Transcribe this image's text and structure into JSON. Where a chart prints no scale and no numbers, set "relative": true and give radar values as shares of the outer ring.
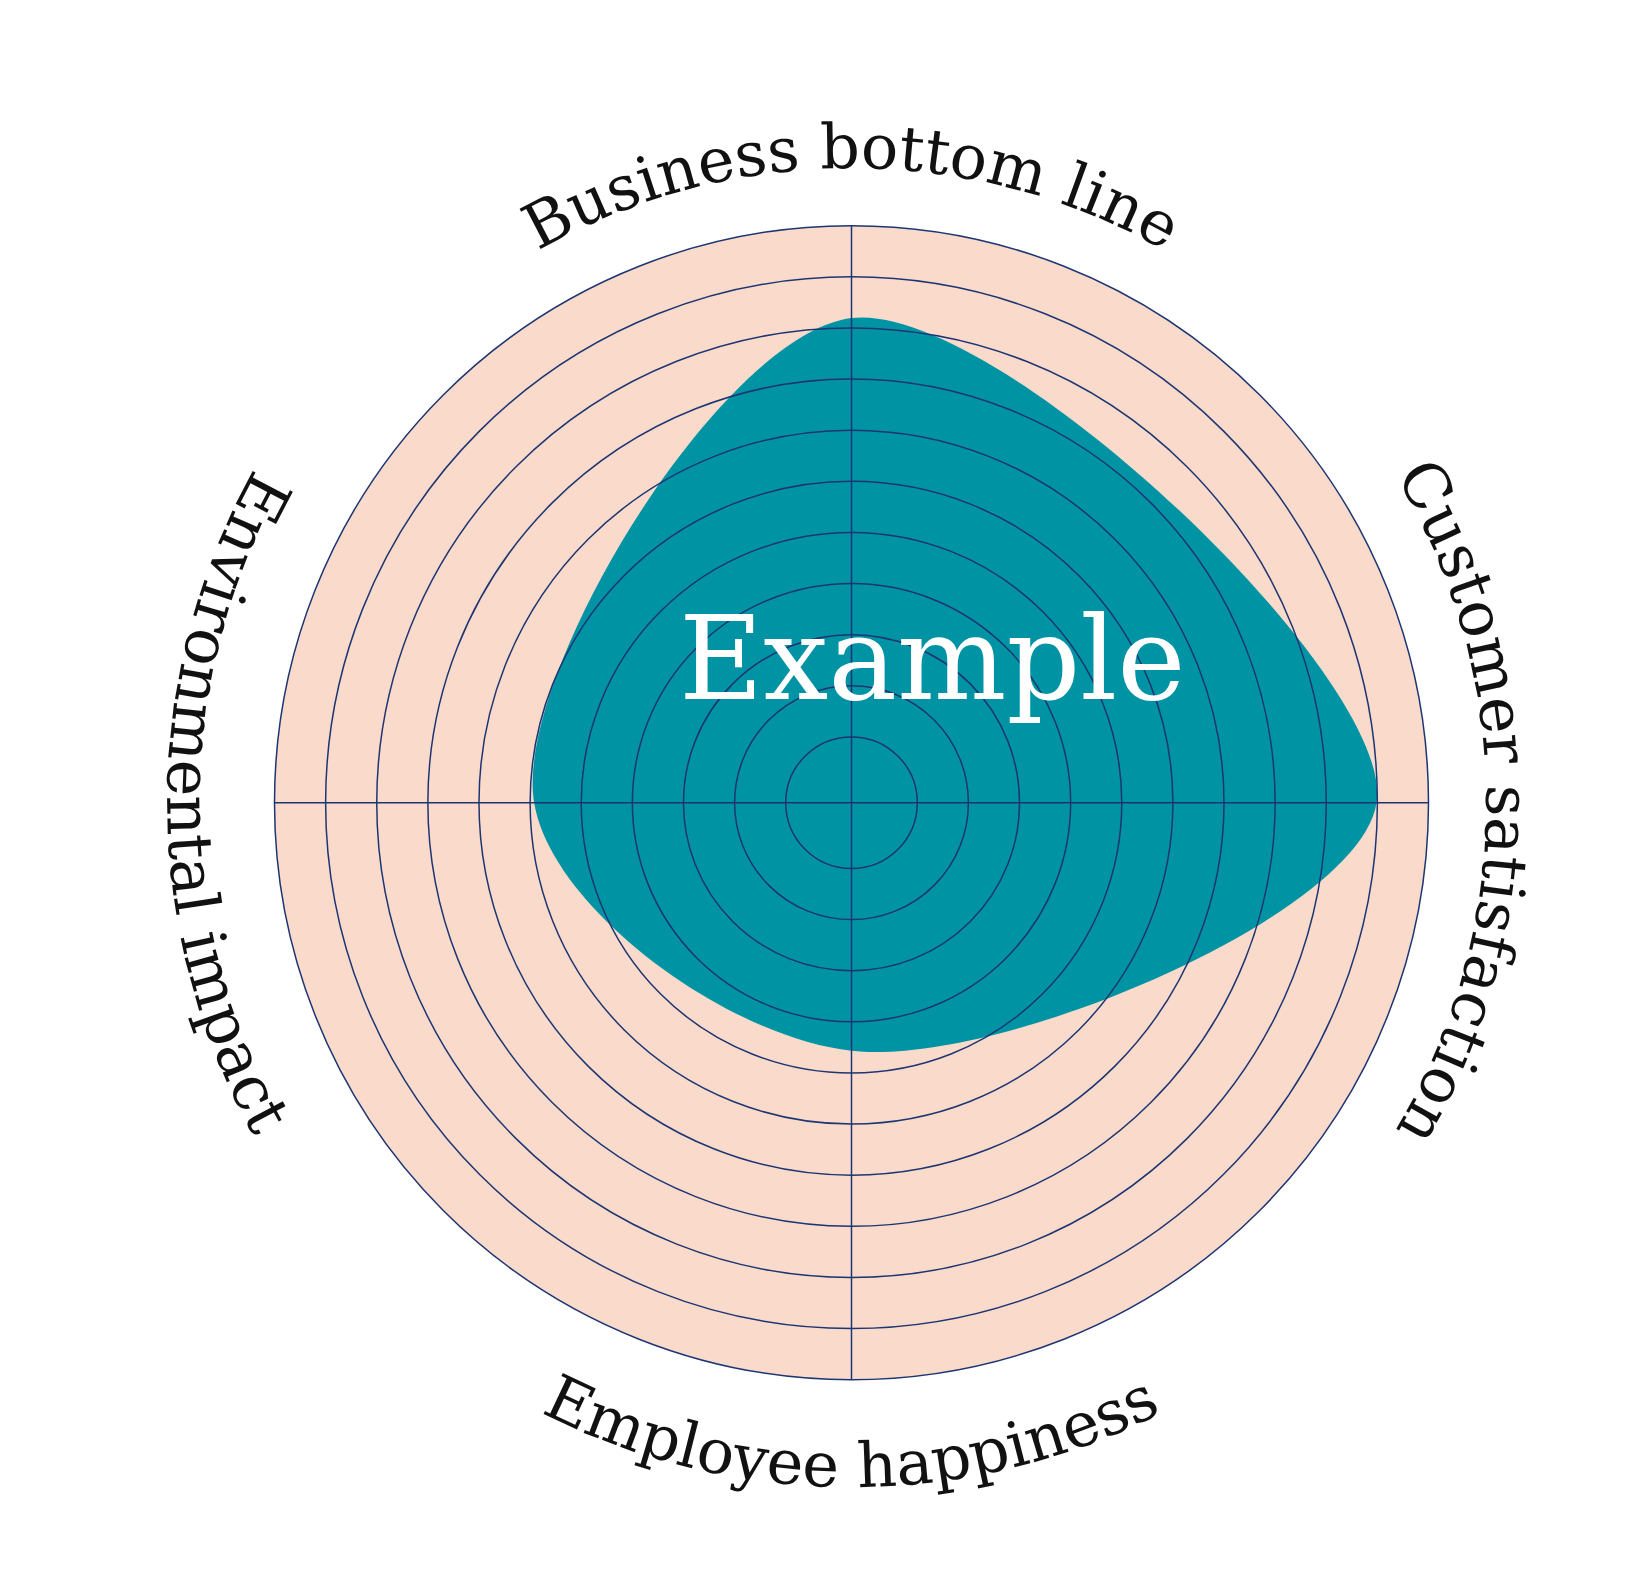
{
  "chart_data": {
    "type": "radar",
    "relative": true,
    "grid": true,
    "categories": [
      "Business bottom line",
      "Customer satisfaction",
      "Employee happiness",
      "Environmental impact"
    ],
    "series": [
      {
        "name": "Example",
        "color": "#0093a4",
        "values": [
          0.84,
          0.91,
          0.43,
          0.55
        ]
      }
    ]
  }
}
